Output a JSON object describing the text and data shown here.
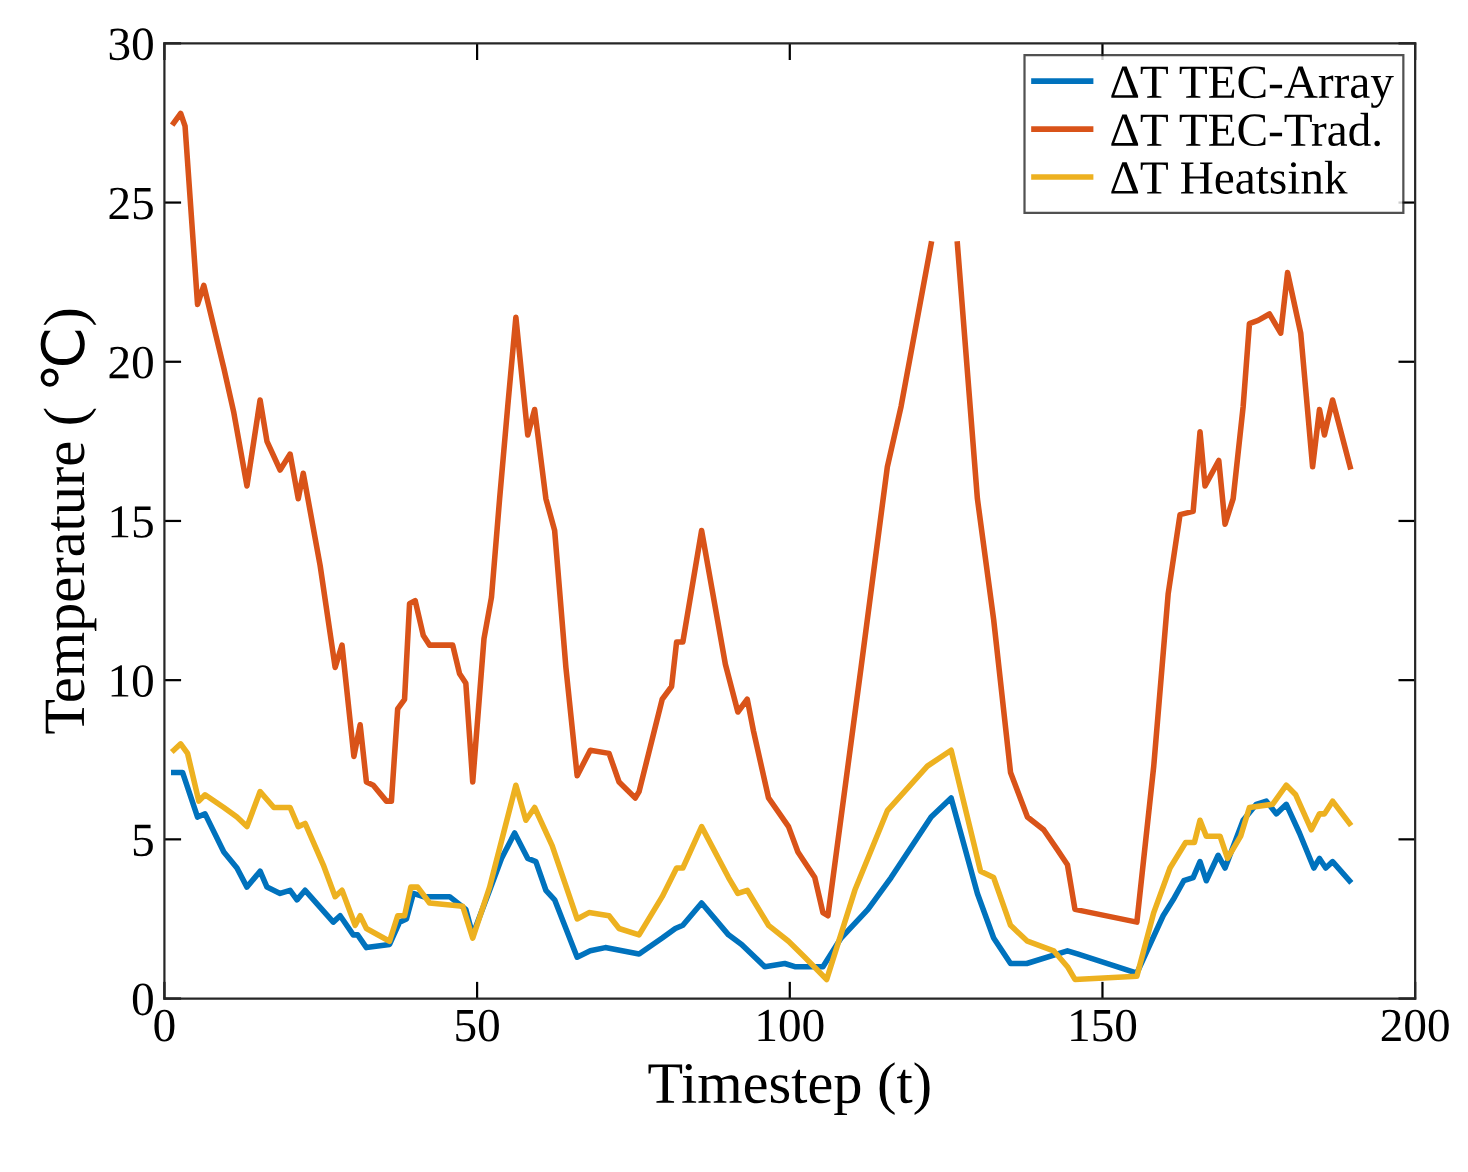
{
  "chart_data": {
    "type": "line",
    "xlabel": "Timestep (t)",
    "ylabel": "Temperature ( ℃)",
    "xlim": [
      0,
      200
    ],
    "ylim": [
      0,
      30
    ],
    "xticks": [
      0,
      50,
      100,
      150,
      200
    ],
    "yticks": [
      0,
      5,
      10,
      15,
      20,
      25,
      30
    ],
    "grid": false,
    "legend": "top right",
    "marker": "none",
    "line_style": "solid",
    "series": [
      {
        "name": "ΔT TEC-Array",
        "color": "#0072bd",
        "x": [
          1.5,
          2.9,
          5.3,
          6.5,
          9.5,
          11.6,
          13.2,
          15.3,
          16.4,
          18.5,
          20.1,
          21.2,
          22.5,
          27,
          28.1,
          30.2,
          30.9,
          32.3,
          36,
          37.6,
          38.7,
          39.8,
          41.4,
          45.6,
          48.2,
          49.3,
          52,
          53.9,
          56,
          58.1,
          59.4,
          61,
          62.4,
          66,
          68.1,
          70.5,
          75.9,
          79.6,
          81.7,
          82.9,
          85.9,
          90.2,
          92.3,
          96,
          99.2,
          100.8,
          105.3,
          108.2,
          112.5,
          116.2,
          122.6,
          125.8,
          130,
          132.6,
          135.3,
          137.9,
          144.4,
          146,
          155.5,
          159.7,
          161.3,
          163,
          164.5,
          165.6,
          166.6,
          168.5,
          169.6,
          172.5,
          174.6,
          176.2,
          177.8,
          179.4,
          181.5,
          183.8,
          184.7,
          185.7,
          186.8,
          189.5
        ],
        "values": [
          7.1,
          7.1,
          5.7,
          5.8,
          4.6,
          4.1,
          3.5,
          4.0,
          3.5,
          3.3,
          3.4,
          3.1,
          3.4,
          2.4,
          2.6,
          2.0,
          2.0,
          1.6,
          1.7,
          2.4,
          2.5,
          3.3,
          3.2,
          3.2,
          2.8,
          2.0,
          3.4,
          4.4,
          5.2,
          4.4,
          4.3,
          3.4,
          3.1,
          1.3,
          1.5,
          1.6,
          1.4,
          1.9,
          2.2,
          2.3,
          3.0,
          2.0,
          1.7,
          1.0,
          1.1,
          1.0,
          1.0,
          1.9,
          2.8,
          3.8,
          5.7,
          6.3,
          3.3,
          1.9,
          1.1,
          1.1,
          1.5,
          1.4,
          0.8,
          2.6,
          3.1,
          3.7,
          3.8,
          4.3,
          3.7,
          4.5,
          4.1,
          5.6,
          6.1,
          6.2,
          5.8,
          6.1,
          5.2,
          4.1,
          4.4,
          4.1,
          4.3,
          3.7
        ]
      },
      {
        "name": "ΔT TEC-Trad.",
        "color": "#d95319",
        "x": [
          1.5,
          2.6,
          3.3,
          5.3,
          6.3,
          9.5,
          11.1,
          13.2,
          15.3,
          16.4,
          18.5,
          20.1,
          21.4,
          22.2,
          24.9,
          27.3,
          28.4,
          30.3,
          31.3,
          32.3,
          33.4,
          35.5,
          36.3,
          37.3,
          38.4,
          39.2,
          40.1,
          41.4,
          42.4,
          46.1,
          47.2,
          48.2,
          49.3,
          51.1,
          52.3,
          53.6,
          54.9,
          56.2,
          58.1,
          59.2,
          61,
          62.4,
          64.2,
          66,
          68.1,
          71.1,
          72.7,
          75.3,
          75.9,
          79.6,
          81.1,
          81.9,
          82.9,
          85.9,
          89.7,
          91.7,
          93.2,
          94.2,
          96.6,
          99.8,
          101.3,
          104,
          105.3,
          106.1,
          111.4,
          115.6,
          117.8,
          122.6,
          124.5,
          126.8,
          130,
          132.6,
          135.3,
          138,
          140.6,
          142.7,
          144.4,
          145.6,
          155.5,
          158.2,
          160.5,
          162.4,
          164.5,
          165.6,
          166.4,
          168.6,
          169.6,
          170.9,
          172.5,
          173.5,
          174.9,
          176.7,
          178.5,
          179.6,
          181.7,
          183.6,
          184.7,
          185.5,
          186.8,
          189.6
        ],
        "values": [
          27.5,
          27.8,
          27.4,
          21.8,
          22.4,
          19.8,
          18.4,
          16.1,
          18.8,
          17.5,
          16.6,
          17.1,
          15.7,
          16.5,
          13.6,
          10.4,
          11.1,
          7.6,
          8.6,
          6.8,
          6.7,
          6.2,
          6.2,
          9.1,
          9.4,
          12.4,
          12.5,
          11.4,
          11.1,
          11.1,
          10.2,
          9.9,
          6.8,
          11.3,
          12.6,
          15.7,
          18.6,
          21.4,
          17.7,
          18.5,
          15.7,
          14.7,
          10.4,
          7.0,
          7.8,
          7.7,
          6.8,
          6.3,
          6.5,
          9.4,
          9.8,
          11.2,
          11.2,
          14.7,
          10.5,
          9.0,
          9.4,
          8.4,
          6.3,
          5.4,
          4.6,
          3.8,
          2.7,
          2.6,
          10.4,
          16.7,
          18.6,
          23.7,
          null,
          23.7,
          15.7,
          11.9,
          7.1,
          5.7,
          5.3,
          4.7,
          4.2,
          2.8,
          2.4,
          7.3,
          12.7,
          15.2,
          15.3,
          17.8,
          16.1,
          16.9,
          14.9,
          15.7,
          18.6,
          21.2,
          21.3,
          21.5,
          20.9,
          22.8,
          20.9,
          16.7,
          18.5,
          17.7,
          18.8,
          16.7
        ]
      },
      {
        "name": "ΔT Heatsink",
        "color": "#edb120",
        "x": [
          1.5,
          2.6,
          3.7,
          5.5,
          6.5,
          9.5,
          11.6,
          13.2,
          15.3,
          17.5,
          20.1,
          21.4,
          22.5,
          25.4,
          27.3,
          28.4,
          30.5,
          31.3,
          32.3,
          36,
          37.3,
          38.4,
          39.4,
          40.5,
          42.4,
          47.7,
          49.3,
          52,
          56.2,
          57.8,
          59.2,
          62,
          66,
          67.9,
          71.1,
          72.7,
          75.9,
          79.6,
          81.9,
          82.9,
          85.9,
          90.2,
          91.7,
          93.2,
          96.6,
          99.8,
          102.4,
          105.9,
          110.4,
          115.6,
          122,
          125.8,
          130.5,
          132.6,
          135.3,
          138,
          142.2,
          144.4,
          145.6,
          155.5,
          158.2,
          160.8,
          163.3,
          164.7,
          165.6,
          166.6,
          168.8,
          170,
          172.1,
          173.5,
          177.2,
          179.4,
          180.9,
          183.4,
          184.7,
          185.5,
          186.8,
          189.5
        ],
        "values": [
          7.8,
          8.0,
          7.7,
          6.2,
          6.4,
          6.0,
          5.7,
          5.4,
          6.5,
          6.0,
          6.0,
          5.4,
          5.5,
          4.2,
          3.2,
          3.4,
          2.3,
          2.6,
          2.2,
          1.8,
          2.6,
          2.6,
          3.5,
          3.5,
          3.0,
          2.9,
          1.9,
          3.5,
          6.7,
          5.6,
          6.0,
          4.8,
          2.5,
          2.7,
          2.6,
          2.2,
          2.0,
          3.2,
          4.1,
          4.1,
          5.4,
          3.8,
          3.3,
          3.4,
          2.3,
          1.8,
          1.3,
          0.6,
          3.4,
          5.9,
          7.3,
          7.8,
          4.0,
          3.8,
          2.3,
          1.8,
          1.5,
          1.0,
          0.6,
          0.7,
          2.7,
          4.1,
          4.9,
          4.9,
          5.6,
          5.1,
          5.1,
          4.4,
          5.1,
          6.0,
          6.1,
          6.7,
          6.4,
          5.3,
          5.8,
          5.8,
          6.2,
          5.5
        ]
      }
    ]
  }
}
